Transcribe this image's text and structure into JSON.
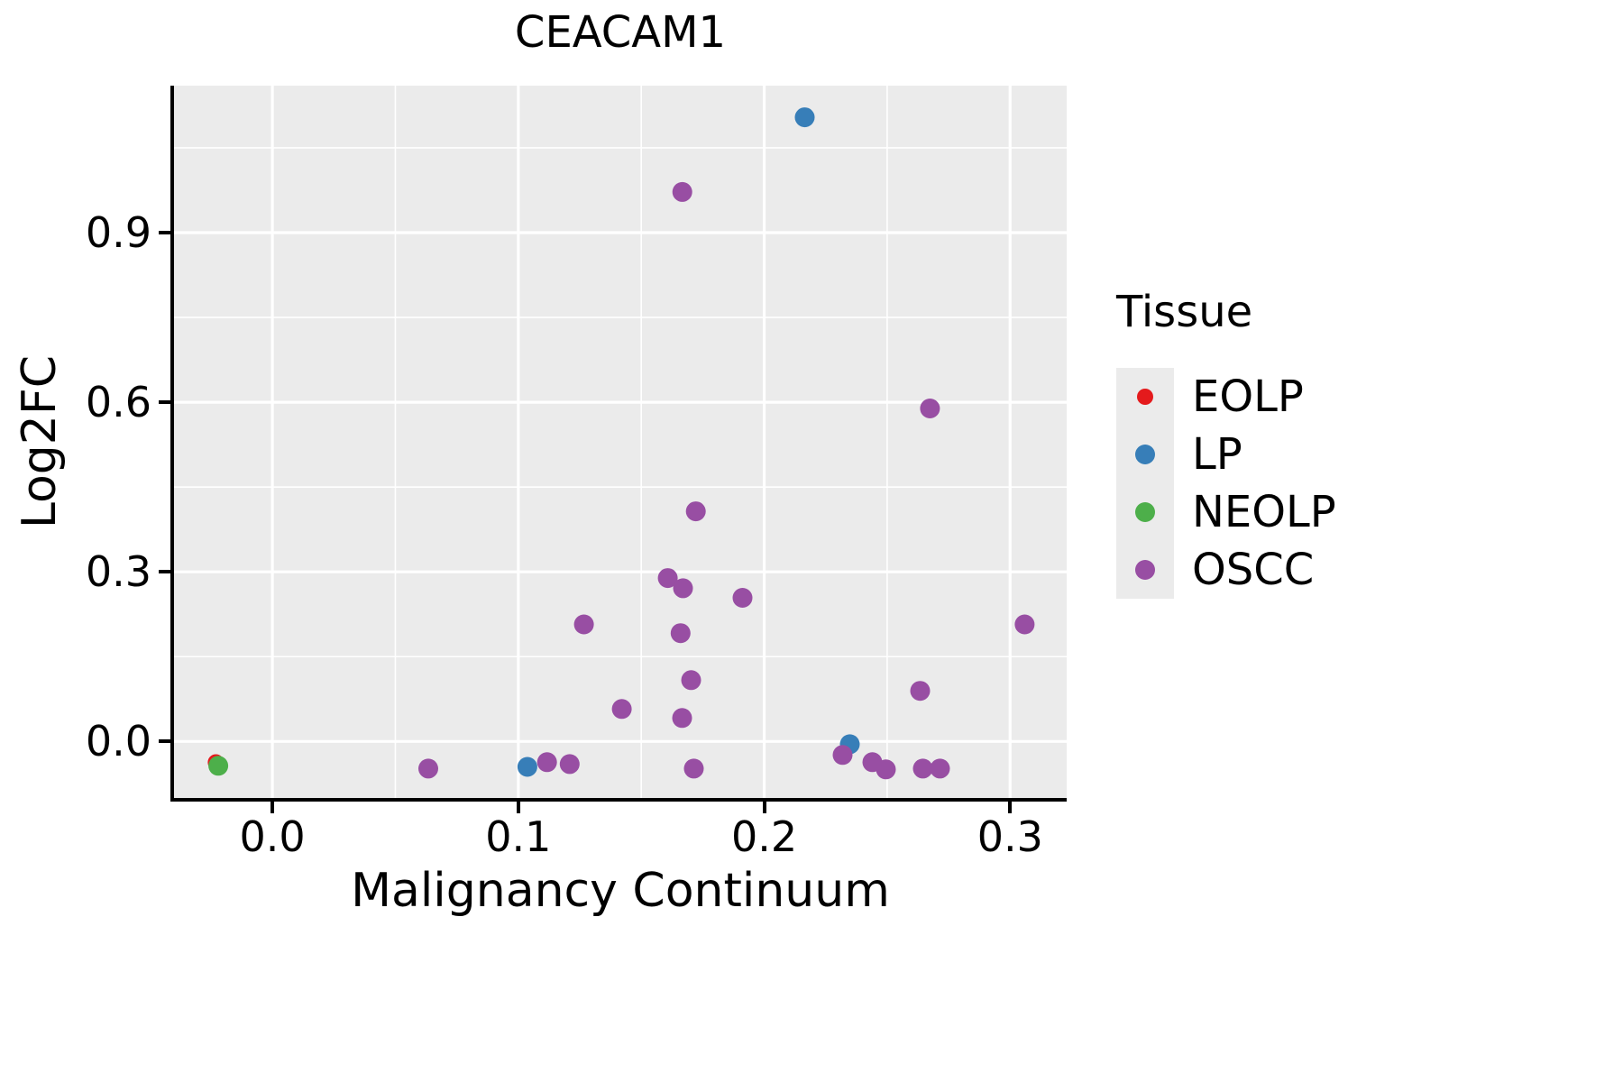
{
  "chart_data": {
    "type": "scatter",
    "title": "CEACAM1",
    "xlabel": "Malignancy Continuum",
    "ylabel": "Log2FC",
    "xlim": [
      -0.04,
      0.323
    ],
    "ylim": [
      -0.1,
      1.16
    ],
    "grid": true,
    "panel_background": "#EBEBEB",
    "grid_color": "#FFFFFF",
    "axis_color": "#000000",
    "legend_title": "Tissue",
    "legend_position": "right",
    "x_ticks": [
      {
        "value": 0.0,
        "label": "0.0"
      },
      {
        "value": 0.1,
        "label": "0.1"
      },
      {
        "value": 0.2,
        "label": "0.2"
      },
      {
        "value": 0.3,
        "label": "0.3"
      }
    ],
    "y_ticks": [
      {
        "value": 0.0,
        "label": "0.0"
      },
      {
        "value": 0.3,
        "label": "0.3"
      },
      {
        "value": 0.6,
        "label": "0.6"
      },
      {
        "value": 0.9,
        "label": "0.9"
      }
    ],
    "x_minor": [
      0.05,
      0.15,
      0.25
    ],
    "y_minor": [
      0.15,
      0.45,
      0.75,
      1.05
    ],
    "series": [
      {
        "name": "EOLP",
        "color": "#E41A1C",
        "radius": 9,
        "points": [
          [
            -0.023,
            -0.037
          ]
        ]
      },
      {
        "name": "LP",
        "color": "#377EB8",
        "radius": 11,
        "points": [
          [
            0.2165,
            1.104
          ],
          [
            0.2348,
            -0.005
          ],
          [
            0.1037,
            -0.045
          ]
        ]
      },
      {
        "name": "NEOLP",
        "color": "#4DAF4A",
        "radius": 11,
        "points": [
          [
            -0.022,
            -0.043
          ]
        ]
      },
      {
        "name": "OSCC",
        "color": "#984EA3",
        "radius": 11,
        "points": [
          [
            0.1667,
            0.972
          ],
          [
            0.2674,
            0.589
          ],
          [
            0.1722,
            0.407
          ],
          [
            0.1608,
            0.289
          ],
          [
            0.167,
            0.271
          ],
          [
            0.1912,
            0.254
          ],
          [
            0.1267,
            0.207
          ],
          [
            0.3059,
            0.207
          ],
          [
            0.166,
            0.1915
          ],
          [
            0.1703,
            0.1085
          ],
          [
            0.2634,
            0.0894
          ],
          [
            0.1421,
            0.0574
          ],
          [
            0.1666,
            0.0415
          ],
          [
            0.2319,
            -0.024
          ],
          [
            0.244,
            -0.0367
          ],
          [
            0.0634,
            -0.048
          ],
          [
            0.1117,
            -0.0367
          ],
          [
            0.1209,
            -0.04
          ],
          [
            0.1714,
            -0.048
          ],
          [
            0.2495,
            -0.0495
          ],
          [
            0.2645,
            -0.048
          ],
          [
            0.2715,
            -0.048
          ]
        ]
      }
    ]
  }
}
